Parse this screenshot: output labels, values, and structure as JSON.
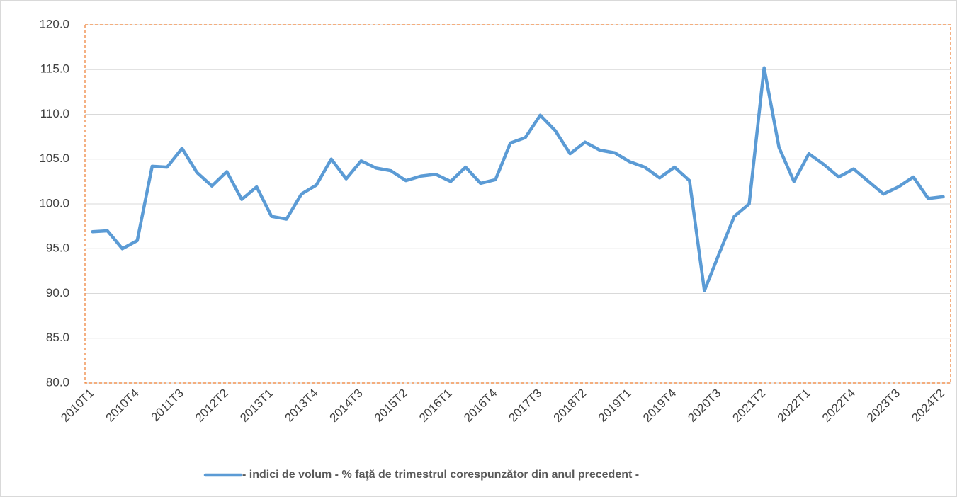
{
  "chart_data": {
    "type": "line",
    "categories": [
      "2010T1",
      null,
      null,
      "2010T4",
      null,
      null,
      "2011T3",
      null,
      null,
      "2012T2",
      null,
      null,
      "2013T1",
      null,
      null,
      "2013T4",
      null,
      null,
      "2014T3",
      null,
      null,
      "2015T2",
      null,
      null,
      "2016T1",
      null,
      null,
      "2016T4",
      null,
      null,
      "2017T3",
      null,
      null,
      "2018T2",
      null,
      null,
      "2019T1",
      null,
      null,
      "2019T4",
      null,
      null,
      "2020T3",
      null,
      null,
      "2021T2",
      null,
      null,
      "2022T1",
      null,
      null,
      "2022T4",
      null,
      null,
      "2023T3",
      null,
      null,
      "2024T2"
    ],
    "series": [
      {
        "name": "- indici de volum - % faţă de trimestrul corespunzător din anul precedent -",
        "color": "#5b9bd5",
        "values": [
          96.9,
          97.0,
          95.0,
          95.9,
          104.2,
          104.1,
          106.2,
          103.5,
          102.0,
          103.6,
          100.5,
          101.9,
          98.6,
          98.3,
          101.1,
          102.1,
          105.0,
          102.8,
          104.8,
          104.0,
          103.7,
          102.6,
          103.1,
          103.3,
          102.5,
          104.1,
          102.3,
          102.7,
          106.8,
          107.4,
          109.9,
          108.2,
          105.6,
          106.9,
          106.0,
          105.7,
          104.7,
          104.1,
          102.9,
          104.1,
          102.6,
          90.3,
          94.5,
          98.6,
          100.0,
          115.2,
          106.3,
          102.5,
          105.6,
          104.4,
          103.0,
          103.9,
          102.5,
          101.1,
          101.9,
          103.0,
          100.6,
          100.8
        ]
      }
    ],
    "ylim": [
      80,
      120
    ],
    "yticks": [
      {
        "value": 80,
        "label": "80.0"
      },
      {
        "value": 85,
        "label": "85.0"
      },
      {
        "value": 90,
        "label": "90.0"
      },
      {
        "value": 95,
        "label": "95.0"
      },
      {
        "value": 100,
        "label": "100.0"
      },
      {
        "value": 105,
        "label": "105.0"
      },
      {
        "value": 110,
        "label": "110.0"
      },
      {
        "value": 115,
        "label": "115.0"
      },
      {
        "value": 120,
        "label": "120.0"
      }
    ],
    "grid": true
  }
}
